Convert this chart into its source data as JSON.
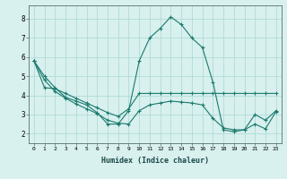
{
  "xlabel": "Humidex (Indice chaleur)",
  "x": [
    0,
    1,
    2,
    3,
    4,
    5,
    6,
    7,
    8,
    9,
    10,
    11,
    12,
    13,
    14,
    15,
    16,
    17,
    18,
    19,
    20,
    21,
    22,
    23
  ],
  "line1": [
    5.8,
    5.0,
    4.4,
    3.9,
    3.7,
    3.5,
    3.1,
    2.5,
    2.5,
    3.2,
    5.8,
    7.0,
    7.5,
    8.1,
    7.7,
    7.0,
    6.5,
    4.7,
    2.2,
    2.1,
    2.2,
    3.0,
    2.7,
    3.2
  ],
  "line2": [
    5.8,
    4.4,
    4.35,
    4.1,
    3.85,
    3.6,
    3.35,
    3.1,
    2.9,
    3.3,
    4.1,
    4.1,
    4.1,
    4.1,
    4.1,
    4.1,
    4.1,
    4.1,
    4.1,
    4.1,
    4.1,
    4.1,
    4.1,
    4.1
  ],
  "line3": [
    5.8,
    4.8,
    4.2,
    3.85,
    3.55,
    3.3,
    3.05,
    2.7,
    2.55,
    2.5,
    3.2,
    3.5,
    3.6,
    3.7,
    3.65,
    3.6,
    3.5,
    2.8,
    2.3,
    2.2,
    2.2,
    2.5,
    2.25,
    3.15
  ],
  "line_color": "#1a7a6e",
  "bg_color": "#d8f0ee",
  "grid_color": "#a8d8d4",
  "ylim": [
    1.5,
    8.7
  ],
  "xlim": [
    -0.5,
    23.5
  ],
  "yticks": [
    2,
    3,
    4,
    5,
    6,
    7,
    8
  ]
}
